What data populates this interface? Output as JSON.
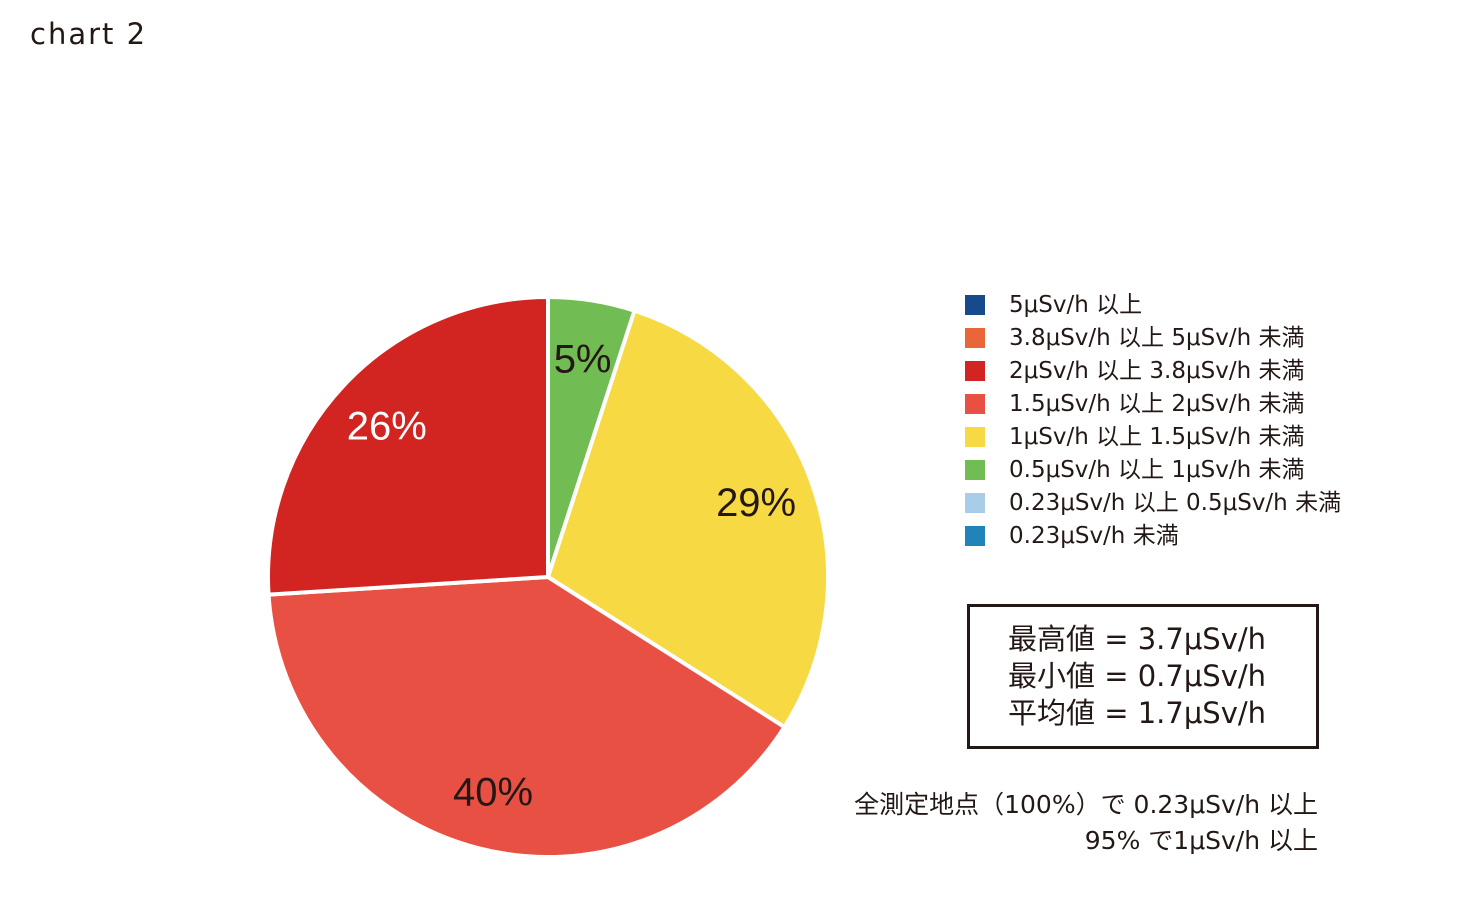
{
  "caption": "chart 2",
  "chart_data": {
    "type": "pie",
    "start": "12 o'clock",
    "direction": "clockwise",
    "slices": [
      {
        "value": 5,
        "label": "5%",
        "category": "0.5μSv/h 以上 1μSv/h 未満",
        "color": "#72BC54",
        "label_color": "#231815"
      },
      {
        "value": 29,
        "label": "29%",
        "category": "1μSv/h 以上 1.5μSv/h 未満",
        "color": "#F7D943",
        "label_color": "#231815"
      },
      {
        "value": 40,
        "label": "40%",
        "category": "1.5μSv/h 以上 2μSv/h 未満",
        "color": "#E85044",
        "label_color": "#231815"
      },
      {
        "value": 26,
        "label": "26%",
        "category": "2μSv/h 以上 3.8μSv/h 未満",
        "color": "#D22522",
        "label_color": "#ffffff"
      }
    ],
    "legend": {
      "placement": "right",
      "items": [
        {
          "label": "5μSv/h 以上",
          "color": "#174A8C"
        },
        {
          "label": "3.8μSv/h 以上 5μSv/h 未満",
          "color": "#E8663A"
        },
        {
          "label": "2μSv/h 以上 3.8μSv/h 未満",
          "color": "#D22522"
        },
        {
          "label": "1.5μSv/h 以上 2μSv/h 未満",
          "color": "#E85044"
        },
        {
          "label": "1μSv/h 以上 1.5μSv/h 未満",
          "color": "#F7D943"
        },
        {
          "label": "0.5μSv/h 以上 1μSv/h 未満",
          "color": "#72BC54"
        },
        {
          "label": "0.23μSv/h 以上 0.5μSv/h 未満",
          "color": "#A9CDE9"
        },
        {
          "label": "0.23μSv/h 未満",
          "color": "#2183B7"
        }
      ]
    }
  },
  "stats": {
    "max": "最高値 = 3.7μSv/h",
    "min": "最小値 = 0.7μSv/h",
    "avg": "平均値 = 1.7μSv/h"
  },
  "footnote": {
    "line1": "全測定地点（100%）で 0.23μSv/h 以上",
    "line2": "95% で1μSv/h 以上"
  }
}
